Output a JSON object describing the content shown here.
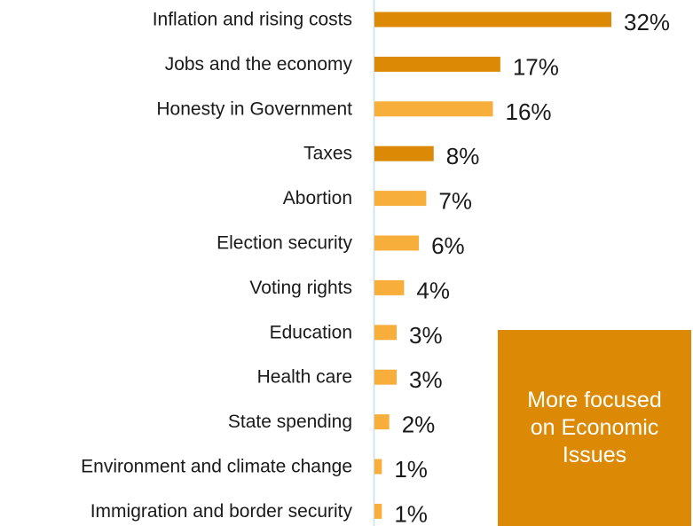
{
  "chart_data": {
    "type": "bar",
    "orientation": "horizontal",
    "categories": [
      "Inflation and rising costs",
      "Jobs and the economy",
      "Honesty in Government",
      "Taxes",
      "Abortion",
      "Election security",
      "Voting rights",
      "Education",
      "Health care",
      "State spending",
      "Environment and climate change",
      "Immigration and border security"
    ],
    "values": [
      32,
      17,
      16,
      8,
      7,
      6,
      4,
      3,
      3,
      2,
      1,
      1
    ],
    "value_labels": [
      "32%",
      "17%",
      "16%",
      "8%",
      "7%",
      "6%",
      "4%",
      "3%",
      "3%",
      "2%",
      "1%",
      "1%"
    ],
    "economic": [
      true,
      true,
      false,
      true,
      false,
      false,
      false,
      false,
      false,
      false,
      false,
      false
    ],
    "xlim": [
      0,
      32
    ],
    "grid": false,
    "annotation": "More focused on Economic Issues"
  },
  "colors": {
    "economic_bar": "#dc8a05",
    "other_bar": "#f8ae3a",
    "callout_bg": "#dc8a05",
    "axis_line": "#c5dff0"
  }
}
